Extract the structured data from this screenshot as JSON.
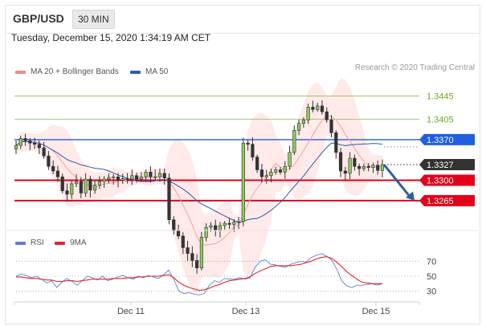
{
  "header": {
    "pair": "GBP/USD",
    "timeframe": "30 MIN"
  },
  "timestamp": "Tuesday, December 15, 2020 1:34:19 AM CET",
  "legend": {
    "ma20_bb": "MA 20 + Bollinger Bands",
    "ma50": "MA 50",
    "rsi": "RSI",
    "ma9": "9MA"
  },
  "credit": "Research © 2020 Trading Central",
  "colors": {
    "bollinger": "#ff9b9b",
    "ma50": "#2a5db0",
    "rsi": "#5b7fd6",
    "ma9": "#e3242b",
    "resistance": "#8cc04b",
    "pivot": "#1f5fe0",
    "support": "#e3001b",
    "price": "#333333"
  },
  "chart_data": [
    {
      "type": "candlestick",
      "y_axis": {
        "min": 1.3215,
        "max": 1.3475
      },
      "x_ticks": [
        "Dec 11",
        "Dec 13",
        "Dec 15"
      ],
      "levels": [
        {
          "label": "1.3445",
          "value": 1.3445,
          "kind": "resistance"
        },
        {
          "label": "1.3405",
          "value": 1.3405,
          "kind": "resistance"
        },
        {
          "label": "1.3370",
          "value": 1.337,
          "kind": "pivot"
        },
        {
          "label": "1.3327",
          "value": 1.3327,
          "kind": "last_price"
        },
        {
          "label": "1.3300",
          "value": 1.33,
          "kind": "support"
        },
        {
          "label": "1.3265",
          "value": 1.3265,
          "kind": "support"
        }
      ],
      "price_path": [
        1.336,
        1.3372,
        1.3368,
        1.3364,
        1.3362,
        1.3356,
        1.3342,
        1.3324,
        1.3316,
        1.3306,
        1.3282,
        1.3276,
        1.3294,
        1.3298,
        1.3278,
        1.3302,
        1.3283,
        1.3292,
        1.3298,
        1.3302,
        1.3305,
        1.3306,
        1.33,
        1.3303,
        1.3302,
        1.3308,
        1.3302,
        1.3306,
        1.3314,
        1.3306,
        1.3306,
        1.3312,
        1.3304,
        1.3232,
        1.3213,
        1.3204,
        1.3184,
        1.3174,
        1.3162,
        1.3149,
        1.3202,
        1.3219,
        1.3222,
        1.3214,
        1.3222,
        1.3226,
        1.3224,
        1.3228,
        1.3229,
        1.3364,
        1.3362,
        1.334,
        1.3318,
        1.3306,
        1.3308,
        1.3314,
        1.3318,
        1.3314,
        1.3324,
        1.3348,
        1.3386,
        1.3398,
        1.3404,
        1.3426,
        1.3422,
        1.3428,
        1.3418,
        1.3404,
        1.3382,
        1.3348,
        1.3316,
        1.3312,
        1.3338,
        1.3324,
        1.332,
        1.3324,
        1.3322,
        1.3326,
        1.3317,
        1.3327
      ],
      "forecast_arrow": {
        "from": 1.3327,
        "to": 1.3265
      }
    },
    {
      "type": "line",
      "title": "RSI",
      "y_ticks": [
        70,
        50,
        30
      ],
      "series": [
        {
          "name": "RSI",
          "values": [
            50,
            53,
            51,
            48,
            50,
            46,
            41,
            44,
            35,
            42,
            47,
            43,
            38,
            44,
            50,
            48,
            45,
            50,
            44,
            46,
            49,
            51,
            48,
            46,
            50,
            48,
            51,
            49,
            47,
            52,
            58,
            46,
            30,
            27,
            28,
            26,
            25,
            27,
            38,
            44,
            42,
            47,
            46,
            46,
            48,
            46,
            48,
            62,
            70,
            72,
            66,
            65,
            63,
            62,
            66,
            68,
            70,
            69,
            75,
            78,
            80,
            77,
            72,
            60,
            44,
            37,
            35,
            38,
            38,
            39,
            40,
            38,
            40
          ]
        },
        {
          "name": "9MA",
          "values": [
            49,
            49,
            48,
            47,
            47,
            46,
            45,
            45,
            43,
            43,
            44,
            44,
            43,
            44,
            45,
            46,
            46,
            46,
            46,
            47,
            47,
            47,
            48,
            48,
            49,
            49,
            50,
            50,
            50,
            51,
            52,
            48,
            42,
            38,
            35,
            33,
            31,
            32,
            34,
            37,
            39,
            42,
            44,
            45,
            46,
            47,
            49,
            54,
            57,
            60,
            63,
            64,
            64,
            64,
            64,
            65,
            66,
            68,
            70,
            73,
            75,
            76,
            74,
            69,
            63,
            56,
            51,
            46,
            42,
            41,
            40,
            40,
            40
          ]
        }
      ]
    }
  ]
}
